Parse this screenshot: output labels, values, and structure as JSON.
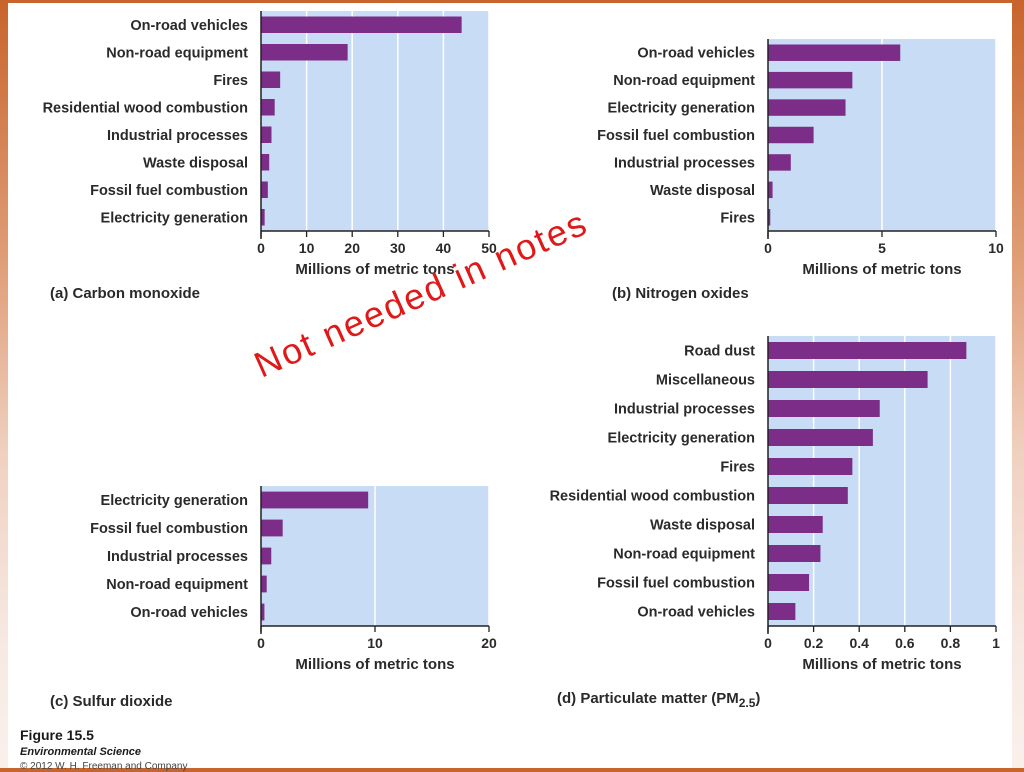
{
  "watermark": "Not needed in notes",
  "figure": {
    "title": "Figure 15.5",
    "subtitle": "Environmental Science",
    "copyright": "© 2012 W. H. Freeman and Company"
  },
  "colors": {
    "bar": "#7b2d87",
    "plot_bg": "#c8dcf5",
    "axis": "#222222"
  },
  "chart_data": [
    {
      "id": "a",
      "type": "bar",
      "orientation": "horizontal",
      "caption": "(a) Carbon monoxide",
      "xlabel": "Millions of metric tons",
      "xlim": [
        0,
        50
      ],
      "ticks": [
        0,
        10,
        20,
        30,
        40,
        50
      ],
      "tick_labels": [
        "0",
        "10",
        "20",
        "30",
        "40",
        "50"
      ],
      "categories": [
        "On-road vehicles",
        "Non-road equipment",
        "Fires",
        "Residential wood combustion",
        "Industrial processes",
        "Waste disposal",
        "Fossil fuel combustion",
        "Electricity generation"
      ],
      "values": [
        44,
        19,
        4.2,
        3,
        2.3,
        1.8,
        1.5,
        0.8
      ]
    },
    {
      "id": "b",
      "type": "bar",
      "orientation": "horizontal",
      "caption": "(b) Nitrogen oxides",
      "xlabel": "Millions of metric tons",
      "xlim": [
        0,
        10
      ],
      "ticks": [
        0,
        5,
        10
      ],
      "tick_labels": [
        "0",
        "5",
        "10"
      ],
      "categories": [
        "On-road vehicles",
        "Non-road equipment",
        "Electricity generation",
        "Fossil fuel combustion",
        "Industrial processes",
        "Waste disposal",
        "Fires"
      ],
      "values": [
        5.8,
        3.7,
        3.4,
        2.0,
        1.0,
        0.2,
        0.1
      ]
    },
    {
      "id": "c",
      "type": "bar",
      "orientation": "horizontal",
      "caption": "(c) Sulfur dioxide",
      "xlabel": "Millions of metric tons",
      "xlim": [
        0,
        20
      ],
      "ticks": [
        0,
        10,
        20
      ],
      "tick_labels": [
        "0",
        "10",
        "20"
      ],
      "categories": [
        "Electricity generation",
        "Fossil fuel combustion",
        "Industrial processes",
        "Non-road equipment",
        "On-road vehicles"
      ],
      "values": [
        9.4,
        1.9,
        0.9,
        0.5,
        0.3
      ]
    },
    {
      "id": "d",
      "type": "bar",
      "orientation": "horizontal",
      "caption": "(d) Particulate matter (PM",
      "caption_sub": "2.5",
      "caption_end": ")",
      "xlabel": "Millions of metric tons",
      "xlim": [
        0,
        1
      ],
      "ticks": [
        0,
        0.2,
        0.4,
        0.6,
        0.8,
        1
      ],
      "tick_labels": [
        "0",
        "0.2",
        "0.4",
        "0.6",
        "0.8",
        "1"
      ],
      "categories": [
        "Road dust",
        "Miscellaneous",
        "Industrial processes",
        "Electricity generation",
        "Fires",
        "Residential wood combustion",
        "Waste disposal",
        "Non-road equipment",
        "Fossil fuel combustion",
        "On-road vehicles"
      ],
      "values": [
        0.87,
        0.7,
        0.49,
        0.46,
        0.37,
        0.35,
        0.24,
        0.23,
        0.18,
        0.12
      ]
    }
  ]
}
